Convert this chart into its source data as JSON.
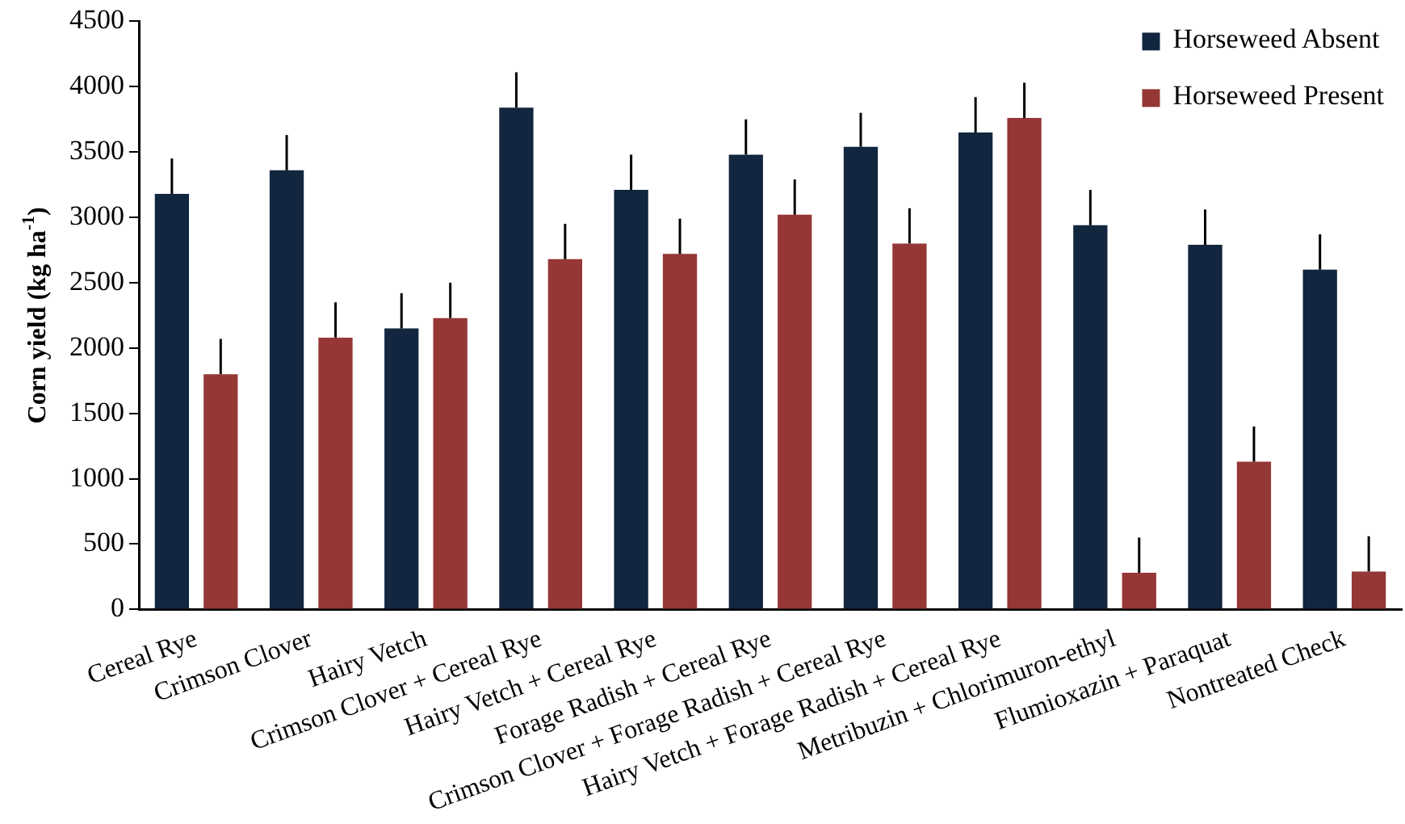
{
  "chart_data": {
    "type": "bar",
    "ylabel": "Corn yield (kg ha$^{-1}$)",
    "categories": [
      "Cereal Rye",
      "Crimson Clover",
      "Hairy Vetch",
      "Crimson Clover + Cereal Rye",
      "Hairy Vetch + Cereal Rye",
      "Forage Radish + Cereal Rye",
      "Crimson Clover + Forage Radish + Cereal Rye",
      "Hairy Vetch + Forage Radish + Cereal Rye",
      "Metribuzin + Chlorimuron-ethyl",
      "Flumioxazin + Paraquat",
      "Nontreated Check"
    ],
    "series": [
      {
        "name": "Horseweed Absent",
        "color": "#12263f",
        "values": [
          3180,
          3360,
          2150,
          3840,
          3210,
          3480,
          3540,
          3650,
          2940,
          2790,
          2600
        ],
        "errors": [
          [
            3180,
            3450
          ],
          [
            3360,
            3630
          ],
          [
            2150,
            2420
          ],
          [
            3840,
            4110
          ],
          [
            3210,
            3480
          ],
          [
            3480,
            3750
          ],
          [
            3540,
            3800
          ],
          [
            3650,
            3920
          ],
          [
            2940,
            3210
          ],
          [
            2790,
            3060
          ],
          [
            2600,
            2870
          ]
        ]
      },
      {
        "name": "Horseweed Present",
        "color": "#953735",
        "values": [
          1800,
          2080,
          2230,
          2680,
          2720,
          3020,
          2800,
          3760,
          280,
          1130,
          290
        ],
        "errors": [
          [
            1800,
            2070
          ],
          [
            2080,
            2350
          ],
          [
            2230,
            2500
          ],
          [
            2680,
            2950
          ],
          [
            2720,
            2990
          ],
          [
            3020,
            3290
          ],
          [
            2800,
            3070
          ],
          [
            3760,
            4030
          ],
          [
            280,
            550
          ],
          [
            1130,
            1400
          ],
          [
            290,
            560
          ]
        ]
      }
    ],
    "ylim": [
      0,
      4500
    ],
    "yticks": [
      0,
      500,
      1000,
      1500,
      2000,
      2500,
      3000,
      3500,
      4000,
      4500
    ],
    "grid": false,
    "legend": "top right"
  }
}
